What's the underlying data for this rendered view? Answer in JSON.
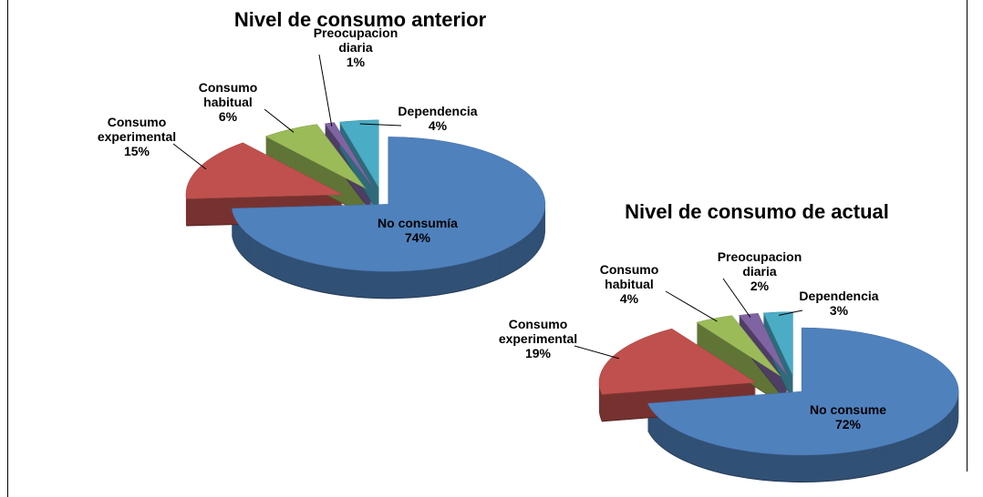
{
  "chart_data": [
    {
      "type": "pie",
      "title": "Nivel de consumo anterior",
      "categories": [
        "No consumía",
        "Consumo experimental",
        "Consumo habitual",
        "Preocupacion diaria",
        "Dependencia"
      ],
      "values": [
        74,
        15,
        6,
        1,
        4
      ],
      "value_labels": [
        "74%",
        "15%",
        "6%",
        "1%",
        "4%"
      ],
      "colors": [
        "#4f81bd",
        "#c0504d",
        "#9bbb59",
        "#8064a2",
        "#4bacc6"
      ]
    },
    {
      "type": "pie",
      "title": "Nivel de consumo de actual",
      "categories": [
        "No consume",
        "Consumo experimental",
        "Consumo habitual",
        "Preocupacion diaria",
        "Dependencia"
      ],
      "values": [
        72,
        19,
        4,
        2,
        3
      ],
      "value_labels": [
        "72%",
        "19%",
        "4%",
        "2%",
        "3%"
      ],
      "colors": [
        "#4f81bd",
        "#c0504d",
        "#9bbb59",
        "#8064a2",
        "#4bacc6"
      ]
    }
  ]
}
